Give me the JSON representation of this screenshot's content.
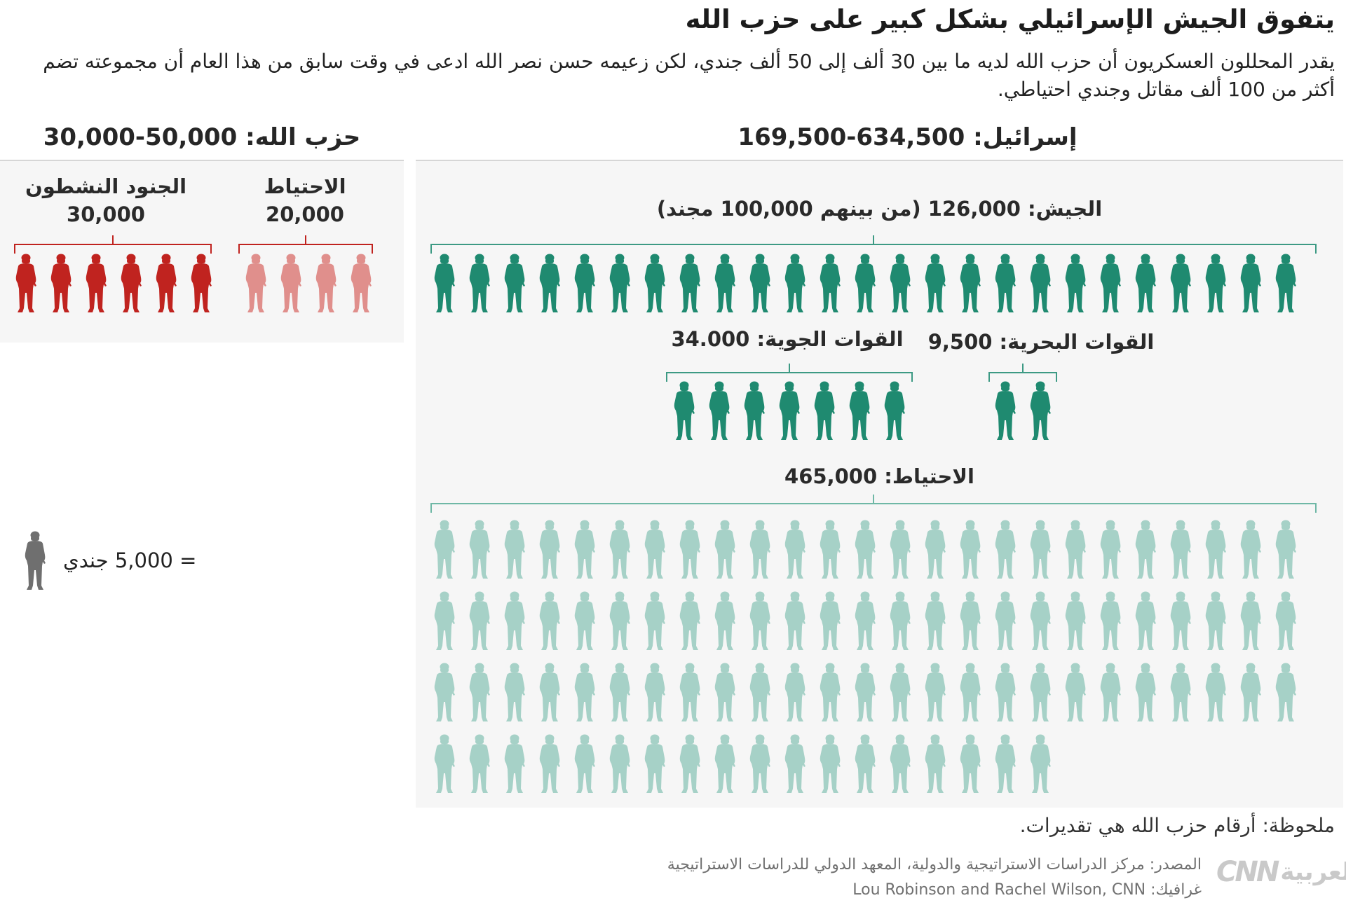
{
  "header": {
    "title": "يتفوق الجيش الإسرائيلي بشكل كبير على حزب الله",
    "subtitle": "يقدر المحللون العسكريون أن حزب الله لديه ما بين 30 ألف إلى 50 ألف جندي، لكن زعيمه حسن نصر الله ادعى في وقت سابق من هذا العام أن مجموعته تضم أكثر من 100 ألف مقاتل وجندي احتياطي."
  },
  "hezbollah": {
    "heading": "حزب الله: 50,000-30,000",
    "groups": [
      {
        "label": "الجنود النشطون",
        "value": "30,000",
        "icons": 6,
        "color": "#c0231f"
      },
      {
        "label": "الاحتياط",
        "value": "20,000",
        "icons": 4,
        "color": "#e08f8c"
      }
    ]
  },
  "israel": {
    "heading": "إسرائيل: 634,500-169,500",
    "army": {
      "label": "الجيش: 126,000 (من بينهم 100,000 مجند)",
      "icons": 25,
      "color": "#1f8a70"
    },
    "navy": {
      "label": "القوات البحرية: 9,500",
      "icons": 2,
      "color": "#1f8a70"
    },
    "air_force": {
      "label": "القوات الجوية: 34.000",
      "icons": 7,
      "color": "#1f8a70"
    },
    "reserves": {
      "label": "الاحتياط: 465,000",
      "icons": 93,
      "per_row": 25,
      "color": "#a6d1c7"
    }
  },
  "legend": {
    "text": "= 5,000 جندي",
    "icon": "soldier-icon",
    "color": "#6f6f6f"
  },
  "footer": {
    "note": "ملحوظة: أرقام حزب الله هي تقديرات.",
    "source": "المصدر: مركز الدراسات الاستراتيجية والدولية، المعهد الدولي للدراسات الاستراتيجية",
    "credit": "غرافيك: Lou Robinson and Rachel Wilson, CNN",
    "logo_cnn": "CNN",
    "logo_arabic": "بالعربية"
  },
  "colors": {
    "hezbollah_active": "#c0231f",
    "hezbollah_reserve": "#e08f8c",
    "israel_active": "#1f8a70",
    "israel_reserve": "#a6d1c7",
    "panel_bg": "#f6f6f6"
  },
  "chart_data": {
    "type": "pictogram",
    "title": "يتفوق الجيش الإسرائيلي بشكل كبير على حزب الله",
    "unit": "1 icon = 5,000 soldiers",
    "categories": [
      "Hezbollah active",
      "Hezbollah reserve",
      "Israel army",
      "Israel navy",
      "Israel air force",
      "Israel reserves"
    ],
    "values": [
      30000,
      20000,
      126000,
      9500,
      34000,
      465000
    ],
    "icon_counts": [
      6,
      4,
      25,
      2,
      7,
      93
    ],
    "totals": {
      "hezbollah": "30,000-50,000",
      "israel": "169,500-634,500"
    },
    "annotations": [
      "Army includes 100,000 conscripts",
      "Hezbollah figures are estimates"
    ]
  }
}
